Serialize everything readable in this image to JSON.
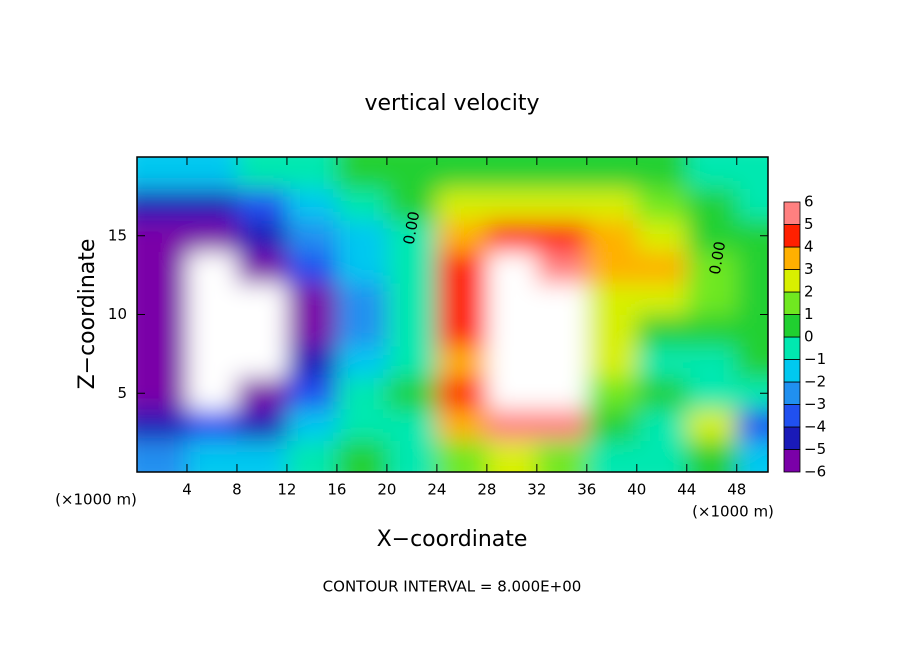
{
  "chart_data": {
    "type": "contour",
    "title": "vertical velocity",
    "xlabel": "X−coordinate",
    "ylabel": "Z−coordinate",
    "x_unit_left": "(×1000 m)",
    "x_unit_right": "(×1000 m)",
    "footer": "CONTOUR INTERVAL = 8.000E+00",
    "contour_labels": [
      "0.00",
      "0.00"
    ],
    "xlim": [
      0,
      50.5
    ],
    "ylim": [
      0,
      20
    ],
    "xticks": [
      4,
      8,
      12,
      16,
      20,
      24,
      28,
      32,
      36,
      40,
      44,
      48
    ],
    "yticks": [
      5,
      10,
      15
    ],
    "x": [
      2,
      6,
      10,
      14,
      18,
      22,
      26,
      30,
      34,
      38,
      42,
      46,
      50
    ],
    "y": [
      1,
      3,
      5,
      7,
      9,
      11,
      13,
      15,
      17,
      19
    ],
    "z": [
      [
        -2,
        -1,
        -1,
        0,
        1,
        0,
        2,
        3,
        2,
        0,
        0,
        1,
        -1
      ],
      [
        -4,
        -3,
        -4,
        -1,
        0,
        0,
        4,
        6,
        6,
        1,
        0,
        3,
        -3
      ],
      [
        -6,
        -7,
        -6,
        -3,
        0,
        1,
        5,
        9,
        8,
        2,
        1,
        0,
        0
      ],
      [
        -5,
        -8,
        -8,
        -4,
        -1,
        0,
        4,
        10,
        9,
        3,
        0,
        0,
        1
      ],
      [
        -5,
        -8,
        -8,
        -5,
        -2,
        0,
        5,
        10,
        9,
        3,
        1,
        1,
        1
      ],
      [
        -5,
        -8,
        -7,
        -5,
        -2,
        0,
        5,
        8,
        7,
        3,
        3,
        2,
        1
      ],
      [
        -5,
        -8,
        -6,
        -3,
        -1,
        0,
        5,
        7,
        6,
        4,
        4,
        2,
        1
      ],
      [
        -5,
        -6,
        -4,
        -2,
        -1,
        0,
        4,
        5,
        5,
        4,
        3,
        1,
        1
      ],
      [
        -4,
        -4,
        -3,
        -1,
        0,
        1,
        3,
        3,
        3,
        3,
        2,
        1,
        0
      ],
      [
        -1,
        -1,
        0,
        0,
        1,
        1,
        1,
        1,
        1,
        1,
        1,
        0,
        0
      ]
    ],
    "colorbar_ticks": [
      {
        "value": -6,
        "label": "−6"
      },
      {
        "value": -5,
        "label": "−5"
      },
      {
        "value": -4,
        "label": "−4"
      },
      {
        "value": -3,
        "label": "−3"
      },
      {
        "value": -2,
        "label": "−2"
      },
      {
        "value": -1,
        "label": "−1"
      },
      0,
      1,
      2,
      3,
      4,
      5,
      6
    ],
    "colors": [
      "#7a00a8",
      "#1a1ab8",
      "#2050f0",
      "#2090f0",
      "#00c8f0",
      "#00e8b0",
      "#20d030",
      "#70e820",
      "#d8f000",
      "#ffb000",
      "#ff2000",
      "#ff8080"
    ],
    "out_of_range_color": "#ffffff"
  }
}
